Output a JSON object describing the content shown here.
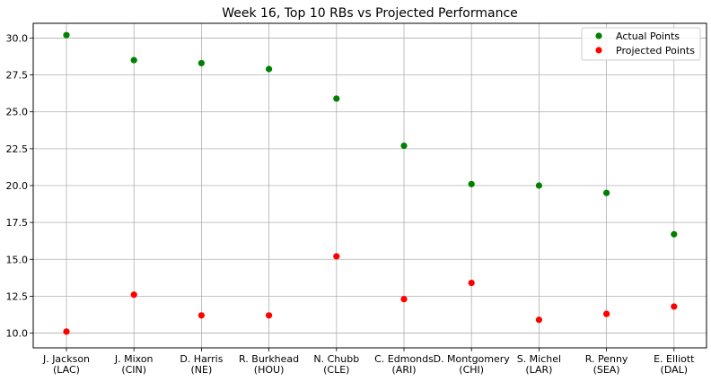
{
  "chart_data": {
    "type": "scatter",
    "title": "Week 16, Top 10 RBs vs Projected Performance",
    "xlabel": "",
    "ylabel": "",
    "categories": [
      "J. Jackson\n(LAC)",
      "J. Mixon\n(CIN)",
      "D. Harris\n(NE)",
      "R. Burkhead\n(HOU)",
      "N. Chubb\n(CLE)",
      "C. Edmonds\n(ARI)",
      "D. Montgomery\n(CHI)",
      "S. Michel\n(LAR)",
      "R. Penny\n(SEA)",
      "E. Elliott\n(DAL)"
    ],
    "series": [
      {
        "name": "Actual Points",
        "color": "#008000",
        "values": [
          30.2,
          28.5,
          28.3,
          27.9,
          25.9,
          22.7,
          20.1,
          20.0,
          19.5,
          16.7
        ]
      },
      {
        "name": "Projected Points",
        "color": "#ff0000",
        "values": [
          10.1,
          12.6,
          11.2,
          11.2,
          15.2,
          12.3,
          13.4,
          10.9,
          11.3,
          11.8
        ]
      }
    ],
    "ylim": [
      9.0,
      31.0
    ],
    "yticks": [
      "10.0",
      "12.5",
      "15.0",
      "17.5",
      "20.0",
      "22.5",
      "25.0",
      "27.5",
      "30.0"
    ],
    "grid": true,
    "legend_position": "top-right"
  }
}
